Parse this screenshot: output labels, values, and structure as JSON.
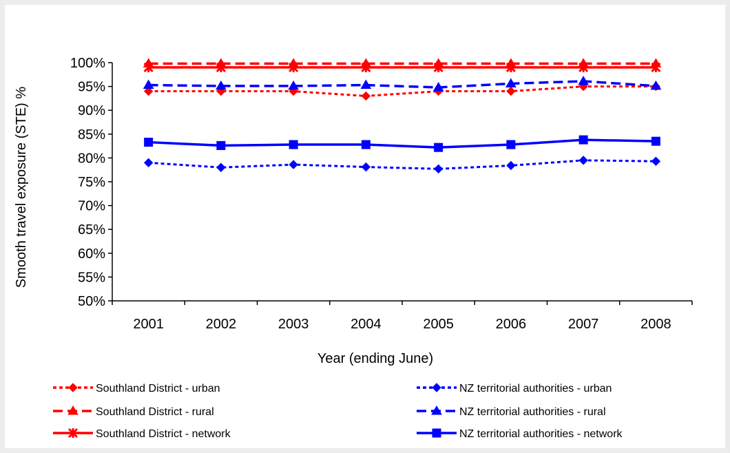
{
  "chart_data": {
    "type": "line",
    "title": "",
    "xlabel": "Year (ending June)",
    "ylabel": "Smooth travel exposure (STE) %",
    "categories": [
      "2001",
      "2002",
      "2003",
      "2004",
      "2005",
      "2006",
      "2007",
      "2008"
    ],
    "ylim": [
      50,
      100
    ],
    "ytick_step": 5,
    "ytick_labels": [
      "50%",
      "55%",
      "60%",
      "65%",
      "70%",
      "75%",
      "80%",
      "85%",
      "90%",
      "95%",
      "100%"
    ],
    "grid": false,
    "legend_position": "bottom",
    "series": [
      {
        "name": "Southland District - urban",
        "color": "#ff0000",
        "dash": "dotted",
        "marker": "diamond",
        "values": [
          94,
          94,
          94,
          93,
          94,
          94,
          95,
          95
        ]
      },
      {
        "name": "Southland District - rural",
        "color": "#ff0000",
        "dash": "dashed",
        "marker": "triangle",
        "values": [
          99.8,
          99.8,
          99.8,
          99.8,
          99.8,
          99.8,
          99.8,
          99.8
        ]
      },
      {
        "name": "Southland District - network",
        "color": "#ff0000",
        "dash": "solid",
        "marker": "star",
        "values": [
          99,
          99,
          99,
          99,
          99,
          99,
          99,
          99
        ]
      },
      {
        "name": "NZ territorial authorities - urban",
        "color": "#0000ff",
        "dash": "dotted",
        "marker": "diamond",
        "values": [
          79,
          78,
          78.6,
          78.1,
          77.7,
          78.4,
          79.5,
          79.3
        ]
      },
      {
        "name": "NZ territorial authorities - rural",
        "color": "#0000ff",
        "dash": "dashed",
        "marker": "triangle",
        "values": [
          95.3,
          95.1,
          95.1,
          95.3,
          94.8,
          95.6,
          96.1,
          95.1
        ]
      },
      {
        "name": "NZ territorial authorities - network",
        "color": "#0000ff",
        "dash": "solid",
        "marker": "square",
        "values": [
          83.3,
          82.6,
          82.8,
          82.8,
          82.2,
          82.8,
          83.8,
          83.5
        ]
      }
    ]
  }
}
